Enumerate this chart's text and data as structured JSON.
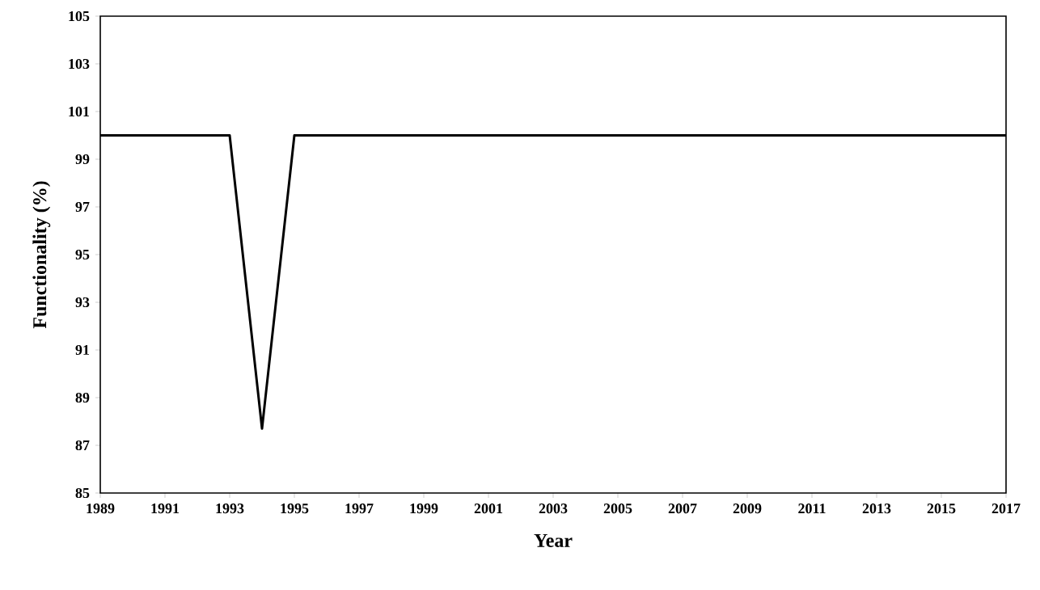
{
  "chart_data": {
    "type": "line",
    "xlabel": "Year",
    "ylabel": "Functionality (%)",
    "x": [
      1989,
      1993,
      1994,
      1995,
      2017
    ],
    "series": [
      {
        "color": "#000000",
        "values": [
          100,
          100,
          87.7,
          100,
          100
        ]
      }
    ],
    "xlim": [
      1989,
      2017
    ],
    "xticks": [
      1989,
      1991,
      1993,
      1995,
      1997,
      1999,
      2001,
      2003,
      2005,
      2007,
      2009,
      2011,
      2013,
      2015,
      2017
    ],
    "ylim": [
      85,
      105
    ],
    "yticks": [
      85,
      87,
      89,
      91,
      93,
      95,
      97,
      99,
      101,
      103,
      105
    ],
    "grid": false,
    "marker": "none",
    "line_style": "solid"
  }
}
